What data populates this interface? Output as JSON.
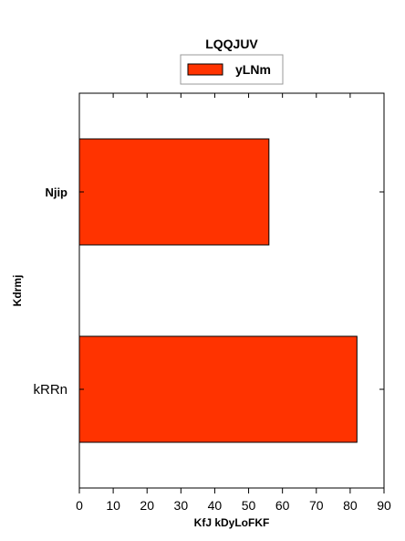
{
  "colors": {
    "bar": "#ff3300",
    "edge": "#000000"
  },
  "chart_data": {
    "type": "bar",
    "orientation": "horizontal",
    "title": "LQQJUV",
    "xlabel": "KfJ kDyLoFKF",
    "ylabel": "Kdrmj",
    "categories": [
      "Njip",
      "kRRn"
    ],
    "series": [
      {
        "name": "yLNm",
        "values": [
          56,
          82
        ]
      }
    ],
    "xlim": [
      0,
      90
    ],
    "xticks": [
      0,
      10,
      20,
      30,
      40,
      50,
      60,
      70,
      80,
      90
    ],
    "grid": false,
    "legend_position": "top-center"
  }
}
